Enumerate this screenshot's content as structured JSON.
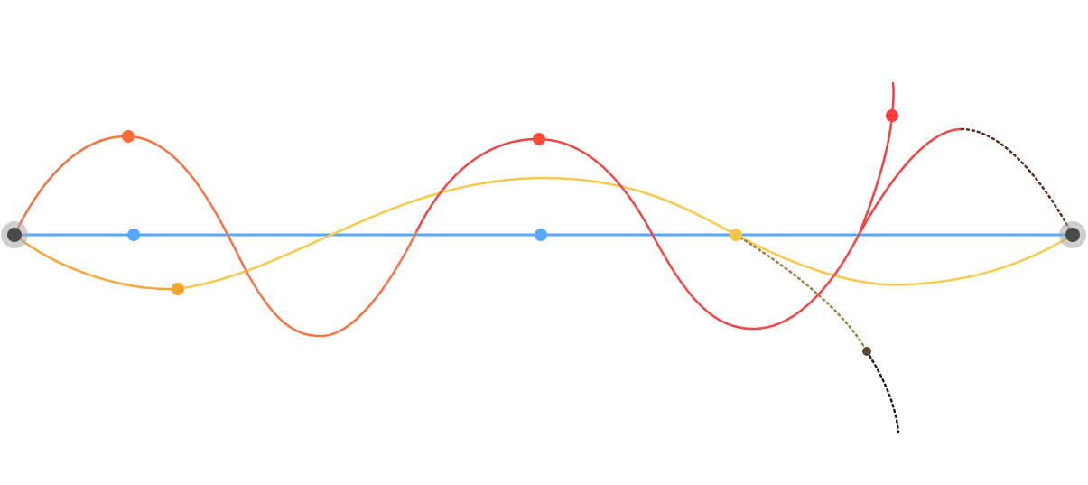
{
  "diagram": {
    "kind": "spline-tangent-construction",
    "colors": {
      "baseline": "#59a8ff",
      "baseline_point": "#59a8ff",
      "anchor_halo": "#a6a6a6",
      "anchor_core": "#4a4a4a",
      "orange_wave": "#f57342",
      "orange_wave_point": "#ff6b3a",
      "amber_curve": "#f2a73a",
      "amber_point": "#f2a52c",
      "red_wave": "#f04646",
      "red_wave_point": "#ff4a3a",
      "yellow_curve": "#f7c94a",
      "yellow_point": "#f7c54a",
      "red_stem": "#f04040",
      "red_stem_point": "#ff3b3b",
      "dotted_dark_brown": "#5a2a20",
      "dotted_olive": "#9b8443",
      "dotted_dark_end": "#1f1a14",
      "dark_point": "#5a4a32"
    },
    "curves": [
      {
        "id": "baseline",
        "style": "solid",
        "color_key": "baseline"
      },
      {
        "id": "orange-wave",
        "style": "solid",
        "color_key": "orange_wave"
      },
      {
        "id": "red-wave",
        "style": "solid",
        "color_key": "red_wave"
      },
      {
        "id": "amber-curve",
        "style": "solid",
        "color_key": "amber_curve"
      },
      {
        "id": "yellow-curve",
        "style": "solid",
        "color_key": "yellow_curve"
      },
      {
        "id": "red-stem",
        "style": "solid",
        "color_key": "red_stem"
      },
      {
        "id": "dotted-brown-arc",
        "style": "dotted",
        "color_key": "dotted_dark_brown"
      },
      {
        "id": "dotted-olive-tail",
        "style": "dotted",
        "color_key": "dotted_olive"
      }
    ]
  }
}
